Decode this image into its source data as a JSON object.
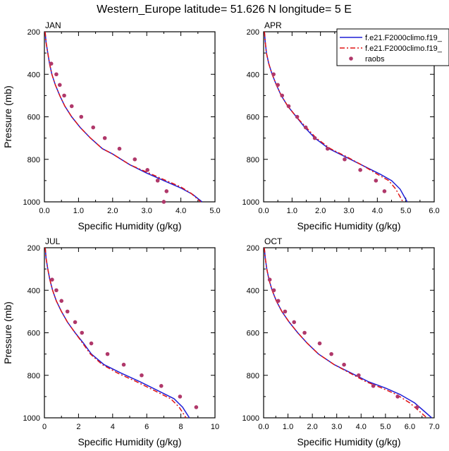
{
  "figure": {
    "title": "Western_Europe  latitude= 51.626 N longitude= 5 E"
  },
  "colors": {
    "series_solid": "#1f1fd6",
    "series_dashed": "#e01414",
    "raobs": "#b0386a",
    "axis": "#000000"
  },
  "legend": {
    "entries": [
      {
        "label": "f.e21.F2000climo.f19_",
        "style": "solid-blue-line"
      },
      {
        "label": "f.e21.F2000climo.f19_",
        "style": "dashed-red-line"
      },
      {
        "label": "raobs",
        "style": "dot-marker"
      }
    ]
  },
  "chart_data": [
    {
      "type": "line",
      "panel": "JAN",
      "xlabel": "Specific Humidity (g/kg)",
      "ylabel": "Pressure (mb)",
      "xlim": [
        0,
        5
      ],
      "ylim": [
        200,
        1000
      ],
      "y_inverted": true,
      "xticks": [
        "0.0",
        "1.0",
        "2.0",
        "3.0",
        "4.0",
        "5.0"
      ],
      "yticks": [
        "200",
        "400",
        "600",
        "800",
        "1000"
      ],
      "series": [
        {
          "name": "f.e21.F2000climo.f19_",
          "style": "solid",
          "x": [
            0.02,
            0.05,
            0.1,
            0.15,
            0.22,
            0.32,
            0.45,
            0.6,
            0.8,
            1.05,
            1.35,
            1.7,
            2.0,
            2.5,
            3.0,
            3.5,
            4.0,
            4.35,
            4.62
          ],
          "y": [
            200,
            250,
            300,
            350,
            400,
            450,
            500,
            550,
            600,
            650,
            700,
            750,
            775,
            825,
            865,
            900,
            935,
            965,
            1000
          ]
        },
        {
          "name": "f.e21.F2000climo.f19_",
          "style": "dashed",
          "x": [
            0.02,
            0.05,
            0.1,
            0.15,
            0.22,
            0.32,
            0.45,
            0.6,
            0.8,
            1.05,
            1.35,
            1.7,
            2.0,
            2.5,
            3.0,
            3.5,
            4.0,
            4.3,
            4.58
          ],
          "y": [
            200,
            250,
            300,
            350,
            400,
            450,
            500,
            550,
            600,
            650,
            700,
            750,
            775,
            825,
            860,
            895,
            930,
            960,
            1000
          ]
        }
      ],
      "raobs": {
        "x": [
          0.2,
          0.35,
          0.45,
          0.58,
          0.8,
          1.08,
          1.43,
          1.77,
          2.2,
          2.65,
          3.02,
          3.32,
          3.58,
          3.5
        ],
        "y": [
          350,
          400,
          450,
          500,
          550,
          600,
          650,
          700,
          750,
          800,
          850,
          900,
          950,
          1000
        ]
      }
    },
    {
      "type": "line",
      "panel": "APR",
      "xlabel": "Specific Humidity (g/kg)",
      "ylabel": "",
      "xlim": [
        0,
        6
      ],
      "ylim": [
        200,
        1000
      ],
      "y_inverted": true,
      "xticks": [
        "0.0",
        "1.0",
        "2.0",
        "3.0",
        "4.0",
        "5.0",
        "6.0"
      ],
      "yticks": [
        "200",
        "400",
        "600",
        "800",
        "1000"
      ],
      "series": [
        {
          "name": "f.e21.F2000climo.f19_",
          "style": "solid",
          "x": [
            0.03,
            0.06,
            0.1,
            0.18,
            0.3,
            0.45,
            0.62,
            0.85,
            1.15,
            1.45,
            1.8,
            2.3,
            2.9,
            3.5,
            4.1,
            4.5,
            4.8,
            5.05
          ],
          "y": [
            200,
            250,
            300,
            350,
            400,
            450,
            500,
            550,
            600,
            650,
            700,
            750,
            790,
            830,
            870,
            900,
            940,
            1000
          ]
        },
        {
          "name": "f.e21.F2000climo.f19_",
          "style": "dashed",
          "x": [
            0.03,
            0.06,
            0.1,
            0.18,
            0.3,
            0.45,
            0.62,
            0.85,
            1.15,
            1.5,
            1.85,
            2.35,
            2.95,
            3.5,
            4.0,
            4.4,
            4.65,
            4.9
          ],
          "y": [
            200,
            250,
            300,
            350,
            400,
            450,
            500,
            550,
            600,
            650,
            700,
            750,
            790,
            830,
            870,
            900,
            940,
            1000
          ]
        }
      ],
      "raobs": {
        "x": [
          0.35,
          0.5,
          0.65,
          0.88,
          1.18,
          1.48,
          1.8,
          2.25,
          2.85,
          3.4,
          3.95,
          4.25
        ],
        "y": [
          400,
          450,
          500,
          550,
          600,
          650,
          700,
          750,
          800,
          850,
          900,
          950
        ]
      }
    },
    {
      "type": "line",
      "panel": "JUL",
      "xlabel": "Specific Humidity (g/kg)",
      "ylabel": "Pressure (mb)",
      "xlim": [
        0,
        10
      ],
      "ylim": [
        200,
        1000
      ],
      "y_inverted": true,
      "xticks": [
        "0",
        "2",
        "4",
        "6",
        "8",
        "10"
      ],
      "yticks": [
        "200",
        "400",
        "600",
        "800",
        "1000"
      ],
      "series": [
        {
          "name": "f.e21.F2000climo.f19_",
          "style": "solid",
          "x": [
            0.05,
            0.1,
            0.2,
            0.32,
            0.48,
            0.7,
            1.0,
            1.35,
            1.8,
            2.3,
            2.75,
            3.5,
            4.5,
            5.6,
            6.6,
            7.6,
            8.1,
            8.5
          ],
          "y": [
            200,
            250,
            300,
            350,
            400,
            450,
            500,
            550,
            600,
            650,
            700,
            750,
            790,
            830,
            870,
            910,
            950,
            1000
          ]
        },
        {
          "name": "f.e21.F2000climo.f19_",
          "style": "dashed",
          "x": [
            0.05,
            0.1,
            0.2,
            0.32,
            0.48,
            0.7,
            1.0,
            1.35,
            1.8,
            2.25,
            2.7,
            3.4,
            4.3,
            5.4,
            6.4,
            7.4,
            7.9,
            8.3
          ],
          "y": [
            200,
            250,
            300,
            350,
            400,
            450,
            500,
            550,
            600,
            650,
            700,
            750,
            790,
            830,
            870,
            910,
            950,
            1000
          ]
        }
      ],
      "raobs": {
        "x": [
          0.45,
          0.7,
          1.0,
          1.35,
          1.8,
          2.2,
          2.75,
          3.7,
          4.65,
          5.7,
          6.85,
          7.95,
          8.9
        ],
        "y": [
          350,
          400,
          450,
          500,
          550,
          600,
          650,
          700,
          750,
          800,
          850,
          900,
          950
        ]
      }
    },
    {
      "type": "line",
      "panel": "OCT",
      "xlabel": "Specific Humidity (g/kg)",
      "ylabel": "",
      "xlim": [
        0,
        7
      ],
      "ylim": [
        200,
        1000
      ],
      "y_inverted": true,
      "xticks": [
        "0.0",
        "1.0",
        "2.0",
        "3.0",
        "4.0",
        "5.0",
        "6.0",
        "7.0"
      ],
      "yticks": [
        "200",
        "400",
        "600",
        "800",
        "1000"
      ],
      "series": [
        {
          "name": "f.e21.F2000climo.f19_",
          "style": "solid",
          "x": [
            0.03,
            0.07,
            0.13,
            0.22,
            0.35,
            0.52,
            0.75,
            1.05,
            1.4,
            1.8,
            2.25,
            2.9,
            3.6,
            4.3,
            5.0,
            5.6,
            6.2,
            6.6,
            6.9
          ],
          "y": [
            200,
            250,
            300,
            350,
            400,
            450,
            500,
            550,
            600,
            650,
            700,
            750,
            790,
            830,
            860,
            890,
            930,
            970,
            1000
          ]
        },
        {
          "name": "f.e21.F2000climo.f19_",
          "style": "dashed",
          "x": [
            0.03,
            0.07,
            0.13,
            0.22,
            0.35,
            0.52,
            0.75,
            1.05,
            1.4,
            1.8,
            2.25,
            2.9,
            3.55,
            4.2,
            4.85,
            5.45,
            6.0,
            6.4,
            6.7
          ],
          "y": [
            200,
            250,
            300,
            350,
            400,
            450,
            500,
            550,
            600,
            650,
            700,
            750,
            790,
            830,
            860,
            890,
            930,
            970,
            1000
          ]
        }
      ],
      "raobs": {
        "x": [
          0.25,
          0.42,
          0.6,
          0.88,
          1.25,
          1.68,
          2.3,
          2.78,
          3.3,
          3.9,
          4.5,
          5.5,
          6.3
        ],
        "y": [
          350,
          400,
          450,
          500,
          550,
          600,
          650,
          700,
          750,
          800,
          850,
          900,
          950
        ]
      }
    }
  ]
}
